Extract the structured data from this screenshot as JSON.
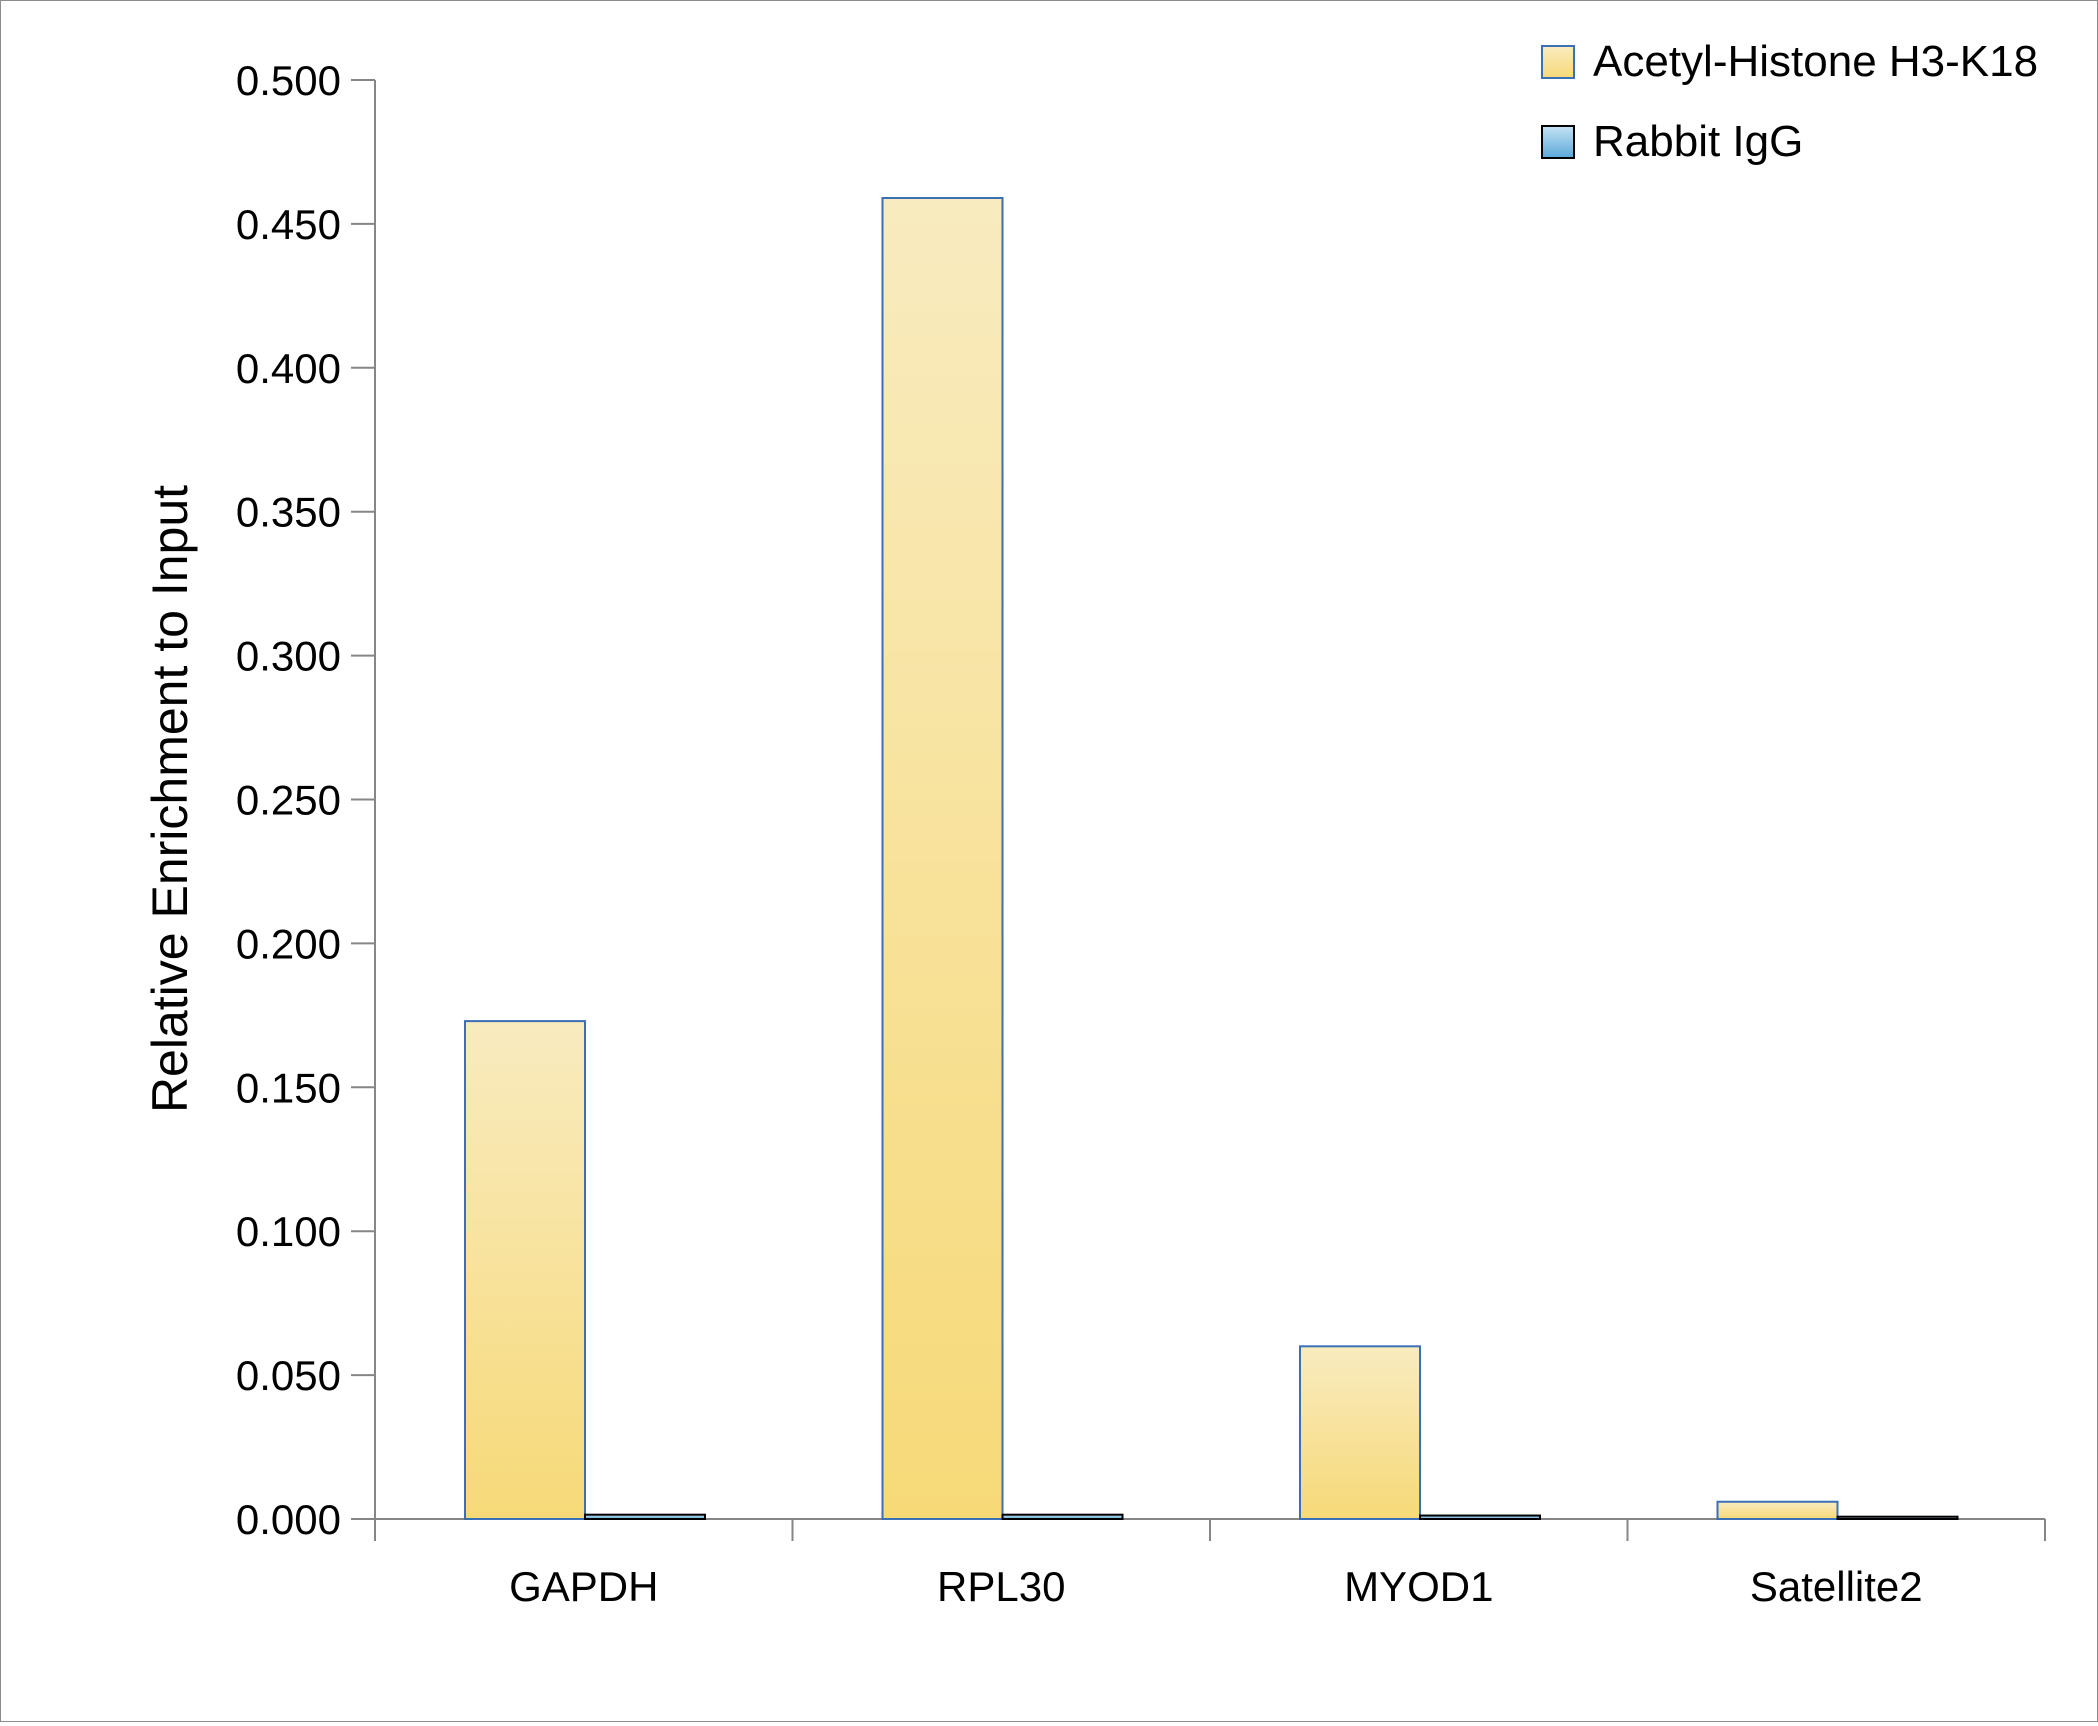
{
  "chart_data": {
    "type": "bar",
    "ylabel": "Relative Enrichment to Input",
    "ylim": [
      0,
      0.5
    ],
    "yticks": [
      "0.000",
      "0.050",
      "0.100",
      "0.150",
      "0.200",
      "0.250",
      "0.300",
      "0.350",
      "0.400",
      "0.450",
      "0.500"
    ],
    "categories": [
      "GAPDH",
      "RPL30",
      "MYOD1",
      "Satellite2"
    ],
    "series": [
      {
        "name": "Acetyl-Histone H3-K18",
        "values": [
          0.173,
          0.459,
          0.06,
          0.006
        ],
        "color": "#f7d978",
        "color_light": "#f8ebbf",
        "stroke": "#3b6fb6"
      },
      {
        "name": "Rabbit IgG",
        "values": [
          0.0015,
          0.0015,
          0.0012,
          0.0008
        ],
        "color": "#5aa8d8",
        "color_light": "#c6e3f4",
        "stroke": "#000000"
      }
    ],
    "grid": false,
    "legend_position": "top-right"
  }
}
